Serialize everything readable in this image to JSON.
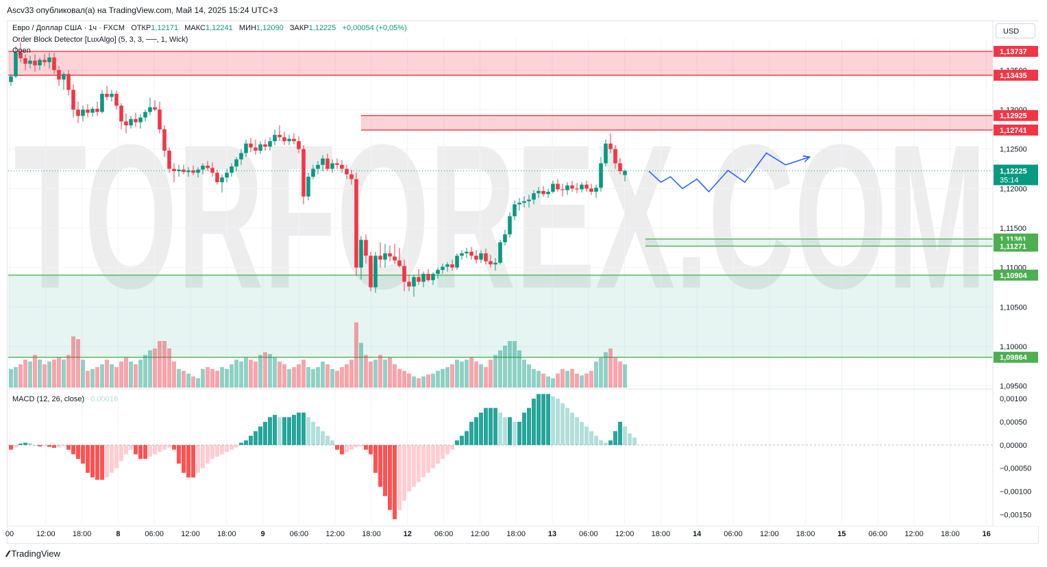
{
  "header": {
    "caption": "Ascv33 опубликовал(а) на TradingView.com, Май 14, 2025 15:24 UTC+3"
  },
  "legend": {
    "symbol": "Евро / Доллар США · 1ч · FXCM",
    "open_label": "ОТКР",
    "open": "1,12171",
    "high_label": "МАКС",
    "high": "1,12241",
    "low_label": "МИН",
    "low": "1,12090",
    "close_label": "ЗАКР",
    "close": "1,12225",
    "change": "+0,00054 (+0,05%)",
    "indicator": "Order Block Detector [LuxAlgo] (5, 3, 3, ──, 1, Wick)",
    "indicator2": "Open",
    "macd_label": "MACD (12, 26, close)",
    "macd_value": "0,00016"
  },
  "currency_button": "USD",
  "watermark": "TORFOREX.COM",
  "brand": "TradingView",
  "colors": {
    "up": "#089981",
    "down": "#f23645",
    "up_light": "#b2dfdb",
    "down_light": "#ffcdd2",
    "forecast": "#2962ff"
  },
  "chart_data": {
    "type": "candlestick",
    "price_axis": {
      "ticks": [
        "1,13500",
        "1,13000",
        "1,12500",
        "1,12000",
        "1,11500",
        "1,11000",
        "1,10500",
        "1,10000",
        "1,09500"
      ],
      "tick_values": [
        1.135,
        1.13,
        1.125,
        1.12,
        1.115,
        1.11,
        1.105,
        1.1,
        1.095
      ],
      "range": [
        1.0948,
        1.1385
      ]
    },
    "time_axis": {
      "labels": [
        "00",
        "12:00",
        "18:00",
        "8",
        "06:00",
        "12:00",
        "18:00",
        "9",
        "06:00",
        "12:00",
        "18:00",
        "12",
        "06:00",
        "12:00",
        "18:00",
        "13",
        "06:00",
        "12:00",
        "18:00",
        "14",
        "06:00",
        "12:00",
        "18:00",
        "15",
        "06:00",
        "12:00",
        "18:00",
        "16"
      ],
      "bold": [
        false,
        false,
        false,
        true,
        false,
        false,
        false,
        true,
        false,
        false,
        false,
        true,
        false,
        false,
        false,
        true,
        false,
        false,
        false,
        true,
        false,
        false,
        false,
        true,
        false,
        false,
        false,
        true
      ]
    },
    "levels": [
      {
        "label": "1,13737",
        "value": 1.13737,
        "kind": "bearish"
      },
      {
        "label": "1,13435",
        "value": 1.13435,
        "kind": "bearish"
      },
      {
        "label": "1,12925",
        "value": 1.12925,
        "kind": "bearish"
      },
      {
        "label": "1,12741",
        "value": 1.12741,
        "kind": "bearish"
      },
      {
        "label": "1,11361",
        "value": 1.11361,
        "kind": "bullish"
      },
      {
        "label": "1,11271",
        "value": 1.11271,
        "kind": "bullish"
      },
      {
        "label": "1,10904",
        "value": 1.10904,
        "kind": "bullish"
      },
      {
        "label": "1,09864",
        "value": 1.09864,
        "kind": "bullish"
      }
    ],
    "zones": [
      {
        "name": "bearish-ob-1",
        "from": 1.13435,
        "to": 1.13737,
        "kind": "bearish"
      },
      {
        "name": "bearish-ob-2",
        "from": 1.12741,
        "to": 1.12925,
        "kind": "bearish"
      },
      {
        "name": "bullish-ob-1",
        "from": 1.11271,
        "to": 1.11361,
        "kind": "bullish"
      },
      {
        "name": "bullish-ob-2",
        "from": 1.09864,
        "to": 1.10904,
        "kind": "bullish"
      }
    ],
    "current_price": {
      "label": "1,12225",
      "value": 1.12225,
      "countdown": "35:14"
    },
    "candles": [
      [
        1.1335,
        1.1345,
        1.133,
        1.1342
      ],
      [
        1.1342,
        1.138,
        1.134,
        1.1372
      ],
      [
        1.1372,
        1.1385,
        1.136,
        1.1365
      ],
      [
        1.1365,
        1.137,
        1.135,
        1.1358
      ],
      [
        1.1358,
        1.1368,
        1.1352,
        1.1362
      ],
      [
        1.1362,
        1.137,
        1.1348,
        1.1356
      ],
      [
        1.1356,
        1.1366,
        1.135,
        1.1363
      ],
      [
        1.1363,
        1.137,
        1.1355,
        1.136
      ],
      [
        1.136,
        1.1372,
        1.1352,
        1.1366
      ],
      [
        1.1366,
        1.1372,
        1.1345,
        1.135
      ],
      [
        1.135,
        1.1355,
        1.133,
        1.1338
      ],
      [
        1.1338,
        1.1348,
        1.1325,
        1.1345
      ],
      [
        1.1345,
        1.135,
        1.1318,
        1.1325
      ],
      [
        1.1325,
        1.1332,
        1.129,
        1.13
      ],
      [
        1.13,
        1.131,
        1.1283,
        1.1292
      ],
      [
        1.1292,
        1.1305,
        1.1285,
        1.13
      ],
      [
        1.13,
        1.1307,
        1.129,
        1.1296
      ],
      [
        1.1296,
        1.1304,
        1.1291,
        1.1301
      ],
      [
        1.1301,
        1.131,
        1.1292,
        1.1297
      ],
      [
        1.1297,
        1.1325,
        1.1295,
        1.132
      ],
      [
        1.132,
        1.133,
        1.1312,
        1.1316
      ],
      [
        1.1316,
        1.1325,
        1.131,
        1.132
      ],
      [
        1.132,
        1.1324,
        1.13,
        1.1305
      ],
      [
        1.1305,
        1.1308,
        1.1275,
        1.1285
      ],
      [
        1.1285,
        1.1295,
        1.127,
        1.128
      ],
      [
        1.128,
        1.1292,
        1.1276,
        1.1288
      ],
      [
        1.1288,
        1.1296,
        1.1278,
        1.1284
      ],
      [
        1.1284,
        1.1294,
        1.1276,
        1.129
      ],
      [
        1.129,
        1.13,
        1.1285,
        1.1297
      ],
      [
        1.1297,
        1.1315,
        1.1293,
        1.1303
      ],
      [
        1.1303,
        1.1312,
        1.1298,
        1.13
      ],
      [
        1.13,
        1.131,
        1.127,
        1.1275
      ],
      [
        1.1275,
        1.128,
        1.124,
        1.1248
      ],
      [
        1.1248,
        1.1252,
        1.122,
        1.1225
      ],
      [
        1.1225,
        1.1232,
        1.1208,
        1.1222
      ],
      [
        1.1222,
        1.123,
        1.1215,
        1.1224
      ],
      [
        1.1224,
        1.123,
        1.1218,
        1.1221
      ],
      [
        1.1221,
        1.1227,
        1.1215,
        1.1223
      ],
      [
        1.1223,
        1.1229,
        1.1217,
        1.122
      ],
      [
        1.122,
        1.1227,
        1.1214,
        1.1224
      ],
      [
        1.1224,
        1.1232,
        1.1218,
        1.1229
      ],
      [
        1.1229,
        1.1235,
        1.1222,
        1.1226
      ],
      [
        1.1226,
        1.1233,
        1.1215,
        1.122
      ],
      [
        1.122,
        1.1224,
        1.1205,
        1.1208
      ],
      [
        1.1208,
        1.1218,
        1.1195,
        1.1214
      ],
      [
        1.1214,
        1.1225,
        1.1208,
        1.122
      ],
      [
        1.122,
        1.1232,
        1.1215,
        1.1228
      ],
      [
        1.1228,
        1.124,
        1.1222,
        1.1237
      ],
      [
        1.1237,
        1.125,
        1.123,
        1.1245
      ],
      [
        1.1245,
        1.1262,
        1.124,
        1.1257
      ],
      [
        1.1257,
        1.1264,
        1.1246,
        1.1252
      ],
      [
        1.1252,
        1.1262,
        1.1243,
        1.1248
      ],
      [
        1.1248,
        1.126,
        1.1244,
        1.1256
      ],
      [
        1.1256,
        1.1262,
        1.1248,
        1.1253
      ],
      [
        1.1253,
        1.1265,
        1.1248,
        1.126
      ],
      [
        1.126,
        1.1275,
        1.1255,
        1.1268
      ],
      [
        1.1268,
        1.128,
        1.126,
        1.1265
      ],
      [
        1.1265,
        1.1272,
        1.1255,
        1.126
      ],
      [
        1.126,
        1.1268,
        1.1255,
        1.1263
      ],
      [
        1.1263,
        1.127,
        1.1256,
        1.126
      ],
      [
        1.126,
        1.1266,
        1.1245,
        1.125
      ],
      [
        1.125,
        1.1255,
        1.118,
        1.119
      ],
      [
        1.119,
        1.122,
        1.1185,
        1.1215
      ],
      [
        1.1215,
        1.123,
        1.1212,
        1.1225
      ],
      [
        1.1225,
        1.1235,
        1.1218,
        1.123
      ],
      [
        1.123,
        1.1242,
        1.1222,
        1.1238
      ],
      [
        1.1238,
        1.1244,
        1.1222,
        1.1225
      ],
      [
        1.1225,
        1.1237,
        1.122,
        1.1232
      ],
      [
        1.1232,
        1.1238,
        1.1225,
        1.123
      ],
      [
        1.123,
        1.1236,
        1.122,
        1.1225
      ],
      [
        1.1225,
        1.123,
        1.1212,
        1.1218
      ],
      [
        1.1218,
        1.1224,
        1.1205,
        1.1212
      ],
      [
        1.1212,
        1.122,
        1.109,
        1.11
      ],
      [
        1.11,
        1.114,
        1.1085,
        1.1135
      ],
      [
        1.1135,
        1.1142,
        1.1105,
        1.1115
      ],
      [
        1.1115,
        1.112,
        1.107,
        1.1075
      ],
      [
        1.1075,
        1.112,
        1.1068,
        1.1115
      ],
      [
        1.1115,
        1.1132,
        1.11,
        1.111
      ],
      [
        1.111,
        1.113,
        1.11,
        1.1118
      ],
      [
        1.1118,
        1.1128,
        1.1108,
        1.1114
      ],
      [
        1.1114,
        1.113,
        1.1105,
        1.1109
      ],
      [
        1.1109,
        1.1125,
        1.11,
        1.1102
      ],
      [
        1.1102,
        1.111,
        1.107,
        1.1082
      ],
      [
        1.1082,
        1.109,
        1.107,
        1.1076
      ],
      [
        1.1076,
        1.109,
        1.1063,
        1.1088
      ],
      [
        1.1088,
        1.1098,
        1.1078,
        1.1082
      ],
      [
        1.1082,
        1.1095,
        1.1075,
        1.1092
      ],
      [
        1.1092,
        1.1098,
        1.1082,
        1.1084
      ],
      [
        1.1084,
        1.1094,
        1.1078,
        1.1092
      ],
      [
        1.1092,
        1.11,
        1.1086,
        1.1097
      ],
      [
        1.1097,
        1.1105,
        1.1092,
        1.1101
      ],
      [
        1.1101,
        1.1107,
        1.1095,
        1.1104
      ],
      [
        1.1104,
        1.111,
        1.1096,
        1.11
      ],
      [
        1.11,
        1.1118,
        1.1097,
        1.1115
      ],
      [
        1.1115,
        1.1122,
        1.111,
        1.1118
      ],
      [
        1.1118,
        1.1125,
        1.1112,
        1.112
      ],
      [
        1.112,
        1.1126,
        1.111,
        1.1115
      ],
      [
        1.1115,
        1.1122,
        1.1105,
        1.111
      ],
      [
        1.111,
        1.1122,
        1.1106,
        1.1118
      ],
      [
        1.1118,
        1.1124,
        1.1104,
        1.1108
      ],
      [
        1.1108,
        1.1116,
        1.11,
        1.1104
      ],
      [
        1.1104,
        1.1112,
        1.1096,
        1.1106
      ],
      [
        1.1106,
        1.1135,
        1.1104,
        1.1132
      ],
      [
        1.1132,
        1.1148,
        1.1128,
        1.1142
      ],
      [
        1.1142,
        1.117,
        1.1138,
        1.1165
      ],
      [
        1.1165,
        1.1185,
        1.116,
        1.118
      ],
      [
        1.118,
        1.1188,
        1.1172,
        1.1182
      ],
      [
        1.1182,
        1.119,
        1.1176,
        1.1184
      ],
      [
        1.1184,
        1.1192,
        1.1176,
        1.1186
      ],
      [
        1.1186,
        1.1198,
        1.118,
        1.1194
      ],
      [
        1.1194,
        1.1202,
        1.1188,
        1.1197
      ],
      [
        1.1197,
        1.1203,
        1.119,
        1.1193
      ],
      [
        1.1193,
        1.12,
        1.1188,
        1.1196
      ],
      [
        1.1196,
        1.121,
        1.1194,
        1.1206
      ],
      [
        1.1206,
        1.1212,
        1.1196,
        1.1199
      ],
      [
        1.1199,
        1.1206,
        1.119,
        1.1198
      ],
      [
        1.1198,
        1.1208,
        1.1192,
        1.1204
      ],
      [
        1.1204,
        1.121,
        1.1196,
        1.12
      ],
      [
        1.12,
        1.1207,
        1.1194,
        1.1199
      ],
      [
        1.1199,
        1.1208,
        1.1195,
        1.1205
      ],
      [
        1.1205,
        1.121,
        1.1196,
        1.12
      ],
      [
        1.12,
        1.1206,
        1.1192,
        1.1196
      ],
      [
        1.1196,
        1.1205,
        1.1188,
        1.1201
      ],
      [
        1.1201,
        1.124,
        1.1196,
        1.1232
      ],
      [
        1.1232,
        1.1262,
        1.1228,
        1.1257
      ],
      [
        1.1257,
        1.127,
        1.1245,
        1.125
      ],
      [
        1.125,
        1.1255,
        1.1225,
        1.1232
      ],
      [
        1.1232,
        1.1238,
        1.1218,
        1.1222
      ],
      [
        1.12171,
        1.12241,
        1.1209,
        1.12225
      ]
    ],
    "volume": [
      0.2,
      0.22,
      0.25,
      0.3,
      0.28,
      0.35,
      0.3,
      0.25,
      0.28,
      0.3,
      0.32,
      0.3,
      0.35,
      0.55,
      0.52,
      0.3,
      0.18,
      0.2,
      0.22,
      0.25,
      0.3,
      0.25,
      0.22,
      0.28,
      0.32,
      0.28,
      0.25,
      0.3,
      0.35,
      0.4,
      0.42,
      0.5,
      0.5,
      0.42,
      0.28,
      0.2,
      0.18,
      0.15,
      0.12,
      0.1,
      0.2,
      0.22,
      0.2,
      0.18,
      0.22,
      0.2,
      0.25,
      0.3,
      0.28,
      0.32,
      0.3,
      0.28,
      0.35,
      0.38,
      0.36,
      0.32,
      0.28,
      0.25,
      0.2,
      0.22,
      0.25,
      0.3,
      0.22,
      0.2,
      0.22,
      0.28,
      0.25,
      0.2,
      0.18,
      0.22,
      0.25,
      0.3,
      0.7,
      0.48,
      0.35,
      0.28,
      0.3,
      0.35,
      0.3,
      0.32,
      0.25,
      0.2,
      0.18,
      0.15,
      0.12,
      0.1,
      0.12,
      0.14,
      0.15,
      0.18,
      0.2,
      0.22,
      0.25,
      0.3,
      0.28,
      0.3,
      0.32,
      0.28,
      0.25,
      0.22,
      0.3,
      0.35,
      0.4,
      0.45,
      0.5,
      0.5,
      0.4,
      0.3,
      0.25,
      0.2,
      0.18,
      0.15,
      0.12,
      0.1,
      0.15,
      0.2,
      0.18,
      0.2,
      0.15,
      0.13,
      0.15,
      0.18,
      0.28,
      0.32,
      0.38,
      0.42,
      0.32,
      0.28,
      0.25,
      0.2
    ],
    "macd": {
      "range": [
        -0.0017,
        0.00115
      ],
      "ticks": [
        "0,00100",
        "0,00050",
        "0,00000",
        "−0,00050",
        "−0,00100",
        "−0,00150"
      ],
      "tick_values": [
        0.001,
        0.0005,
        0.0,
        -0.0005,
        -0.001,
        -0.0015
      ],
      "histogram": [
        -0.0001,
        -5e-05,
        3e-05,
        5e-05,
        4e-05,
        0.0,
        -3e-05,
        -2e-05,
        -4e-05,
        -6e-05,
        -5e-05,
        -2e-05,
        -0.0001,
        -0.0002,
        -0.0003,
        -0.0004,
        -0.0006,
        -0.0007,
        -0.00075,
        -0.00075,
        -0.0007,
        -0.0006,
        -0.0005,
        -0.00035,
        -0.0002,
        -0.0001,
        -0.0002,
        -0.0003,
        -0.0003,
        -0.00025,
        -0.0002,
        -0.00015,
        -0.0001,
        -5e-05,
        -0.0001,
        -0.0004,
        -0.0006,
        -0.0007,
        -0.0007,
        -0.0006,
        -0.0005,
        -0.0004,
        -0.0003,
        -0.00025,
        -0.0002,
        -0.00015,
        -0.0001,
        -5e-05,
        5e-05,
        0.0001,
        0.0002,
        0.0003,
        0.0004,
        0.0005,
        0.0006,
        0.00065,
        0.0006,
        0.0006,
        0.0006,
        0.00065,
        0.0007,
        0.0007,
        0.0006,
        0.0005,
        0.0004,
        0.0003,
        0.0002,
        0.0001,
        -0.0001,
        -0.0002,
        -0.00015,
        -0.0001,
        -5e-05,
        -3e-05,
        -0.0001,
        -0.0002,
        -0.0006,
        -0.0009,
        -0.0011,
        -0.0014,
        -0.0016,
        -0.0014,
        -0.0012,
        -0.001,
        -0.0009,
        -0.0008,
        -0.0007,
        -0.0006,
        -0.0005,
        -0.0004,
        -0.0003,
        -0.0002,
        -0.0001,
        0.0001,
        0.0002,
        0.0003,
        0.0005,
        0.0006,
        0.0007,
        0.0008,
        0.0008,
        0.0008,
        0.0007,
        0.0006,
        0.0006,
        0.0005,
        0.0005,
        0.0007,
        0.0008,
        0.001,
        0.0011,
        0.0011,
        0.0011,
        0.00105,
        0.001,
        0.0009,
        0.0008,
        0.0007,
        0.0006,
        0.0005,
        0.0004,
        0.0003,
        0.0002,
        0.0001,
        5e-05,
        0.0001,
        0.0003,
        0.0005,
        0.0004,
        0.00025,
        0.00016
      ]
    },
    "forecast_path": [
      [
        133.0,
        1.1222
      ],
      [
        135.5,
        1.1208
      ],
      [
        137.5,
        1.1215
      ],
      [
        140.0,
        1.12
      ],
      [
        143.0,
        1.1212
      ],
      [
        145.5,
        1.1196
      ],
      [
        149.5,
        1.1223
      ],
      [
        153.0,
        1.1208
      ],
      [
        157.5,
        1.1245
      ],
      [
        161.5,
        1.123
      ],
      [
        166.5,
        1.124
      ]
    ]
  }
}
